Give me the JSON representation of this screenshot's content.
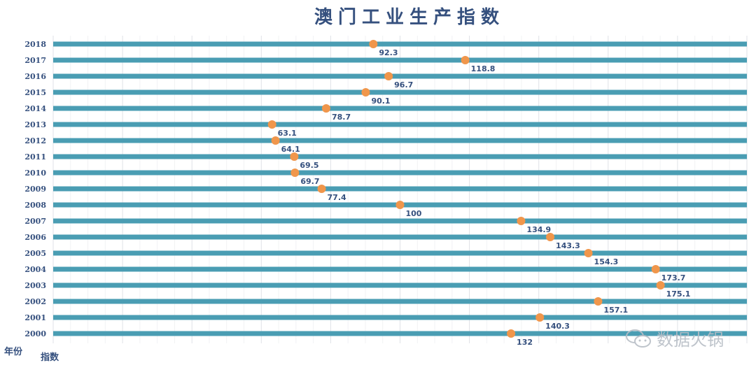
{
  "chart_data": {
    "type": "dot",
    "title": "澳门工业生产指数",
    "xlabel": "指数",
    "ylabel": "年份",
    "categories": [
      "2018",
      "2017",
      "2016",
      "2015",
      "2014",
      "2013",
      "2012",
      "2011",
      "2010",
      "2009",
      "2008",
      "2007",
      "2006",
      "2005",
      "2004",
      "2003",
      "2002",
      "2001",
      "2000"
    ],
    "values": [
      92.3,
      118.8,
      96.7,
      90.1,
      78.7,
      63.1,
      64.1,
      69.5,
      69.7,
      77.4,
      100,
      134.9,
      143.3,
      154.3,
      173.7,
      175.1,
      157.1,
      140.3,
      132
    ],
    "value_labels": [
      "92.3",
      "118.8",
      "96.7",
      "90.1",
      "78.7",
      "63.1",
      "64.1",
      "69.5",
      "69.7",
      "77.4",
      "100",
      "134.9",
      "143.3",
      "154.3",
      "173.7",
      "175.1",
      "157.1",
      "140.3",
      "132"
    ],
    "xlim": [
      0,
      200
    ],
    "grid": true,
    "colors": {
      "bar": "#4a9db3",
      "dot": "#f0964b",
      "text": "#35507e",
      "grid": "#e6e8ec"
    }
  },
  "watermark": "数据火锅"
}
